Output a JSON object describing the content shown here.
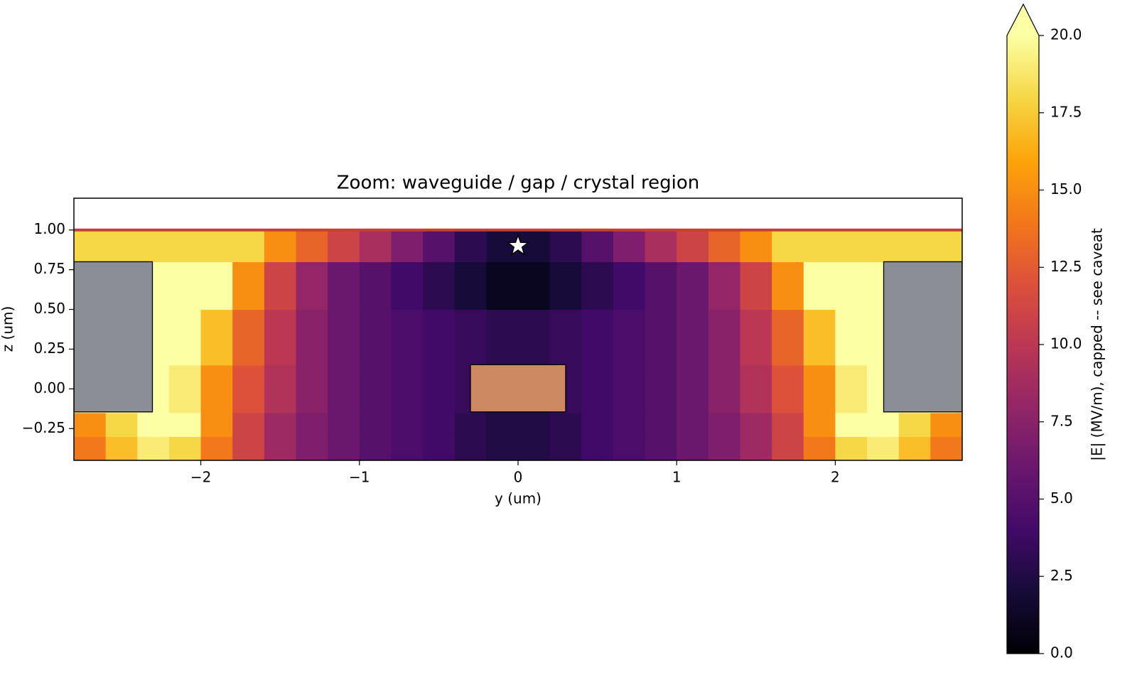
{
  "chart_data": {
    "type": "heatmap",
    "title": "Zoom: waveguide / gap / crystal region",
    "x_label": "y (um)",
    "y_label": "z (um)",
    "colorbar_label": "|E| (MV/m), capped -- see caveat",
    "xlim": [
      -2.8,
      2.8
    ],
    "ylim": [
      -0.45,
      1.2
    ],
    "xticks": [
      {
        "value": -2,
        "label": "−2"
      },
      {
        "value": -1,
        "label": "−1"
      },
      0,
      1,
      2
    ],
    "yticks": [
      {
        "value": -0.25,
        "label": "−0.25"
      },
      {
        "value": 0,
        "label": "0.00"
      },
      0.25,
      {
        "value": 0.5,
        "label": "0.50"
      },
      0.75,
      {
        "value": 1,
        "label": "1.00"
      }
    ],
    "clim": [
      0,
      20
    ],
    "cticks": [
      {
        "value": 0,
        "label": "0.0"
      },
      2.5,
      {
        "value": 5,
        "label": "5.0"
      },
      7.5,
      {
        "value": 10,
        "label": "10.0"
      },
      12.5,
      {
        "value": 15,
        "label": "15.0"
      },
      17.5,
      {
        "value": 20,
        "label": "20.0"
      }
    ],
    "colormap": [
      "#000004",
      "#160b39",
      "#420a68",
      "#6a176e",
      "#932667",
      "#bc3754",
      "#dd513a",
      "#f37819",
      "#fca50a",
      "#f6d746",
      "#fcffa4"
    ],
    "xbins": [
      -2.8,
      -2.6,
      -2.4,
      -2.2,
      -2.0,
      -1.8,
      -1.6,
      -1.4,
      -1.2,
      -1.0,
      -0.8,
      -0.6,
      -0.4,
      -0.2,
      0,
      0.2,
      0.4,
      0.6,
      0.8,
      1.0,
      1.2,
      1.4,
      1.6,
      1.8,
      2.0,
      2.2,
      2.4,
      2.6,
      2.8
    ],
    "ybins": [
      -0.45,
      -0.3,
      -0.15,
      0.15,
      0.5,
      0.8,
      1.0
    ],
    "values": [
      [
        14,
        17,
        19,
        18,
        14,
        11,
        8.5,
        7,
        6,
        5,
        4.5,
        4,
        3,
        2.5,
        2.5,
        3,
        4,
        4.5,
        5,
        6,
        7,
        8.5,
        11,
        14,
        18,
        19,
        17,
        14
      ],
      [
        15,
        18,
        20,
        20,
        15,
        11,
        8.5,
        7,
        6,
        5,
        4.5,
        4,
        3,
        2.5,
        2.5,
        3,
        4,
        4.5,
        5,
        6,
        7,
        8.5,
        11,
        15,
        20,
        20,
        18,
        15
      ],
      [
        20,
        20,
        20,
        19,
        15,
        12,
        9.5,
        7.5,
        6,
        5,
        4.5,
        4,
        3.5,
        3,
        3,
        3.5,
        4,
        4.5,
        5,
        6,
        7.5,
        9.5,
        12,
        15,
        19,
        20,
        20,
        20
      ],
      [
        20,
        20,
        20,
        20,
        17,
        13,
        10,
        7.5,
        6,
        5,
        4.5,
        4,
        3.5,
        3,
        3,
        3.5,
        4,
        4.5,
        5,
        6,
        7.5,
        10,
        13,
        17,
        20,
        20,
        20,
        20
      ],
      [
        20,
        20,
        20,
        20,
        20,
        15,
        11,
        8,
        6,
        5,
        4,
        3,
        2,
        1,
        1,
        2,
        3,
        4,
        5,
        6,
        8,
        11,
        15,
        20,
        20,
        20,
        20,
        20
      ],
      [
        18,
        18,
        18,
        18,
        18,
        18,
        15,
        13,
        11,
        9,
        7,
        5,
        3,
        2,
        2,
        3,
        5,
        7,
        9,
        11,
        13,
        15,
        18,
        18,
        18,
        18,
        18,
        18
      ]
    ],
    "regions": [
      {
        "x": [
          -2.8,
          -2.305
        ],
        "y": [
          -0.145,
          0.8
        ],
        "color": "#8b8e95"
      },
      {
        "x": [
          2.305,
          2.8
        ],
        "y": [
          -0.145,
          0.8
        ],
        "color": "#8b8e95"
      },
      {
        "x": [
          -0.3,
          0.3
        ],
        "y": [
          -0.145,
          0.152
        ],
        "color": "#cd8a60"
      }
    ],
    "hline": {
      "y": 1.0,
      "color": "#c8402c"
    },
    "marker": {
      "x": 0,
      "y": 0.9
    }
  }
}
